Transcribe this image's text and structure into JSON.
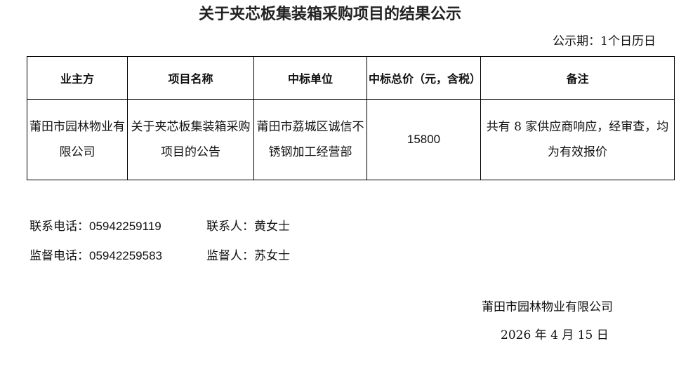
{
  "title": "关于夹芯板集装箱采购项目的结果公示",
  "period": "公示期：1个日历日",
  "table": {
    "headers": [
      "业主方",
      "项目名称",
      "中标单位",
      "中标总价（元，含税）",
      "备注"
    ],
    "row": [
      "莆田市园林物业有限公司",
      "关于夹芯板集装箱采购项目的公告",
      "莆田市荔城区诚信不锈钢加工经营部",
      "15800",
      "共有 8 家供应商响应，经审查，均为有效报价"
    ]
  },
  "contacts": {
    "phone_label": "联系电话：",
    "phone": "05942259119",
    "person_label": "联系人：",
    "person": "黄女士",
    "supervise_phone_label": "监督电话：",
    "supervise_phone": "05942259583",
    "supervisor_label": "监督人：",
    "supervisor": "苏女士"
  },
  "signature": {
    "company": "莆田市园林物业有限公司",
    "date": "2026 年 4 月 15 日"
  }
}
